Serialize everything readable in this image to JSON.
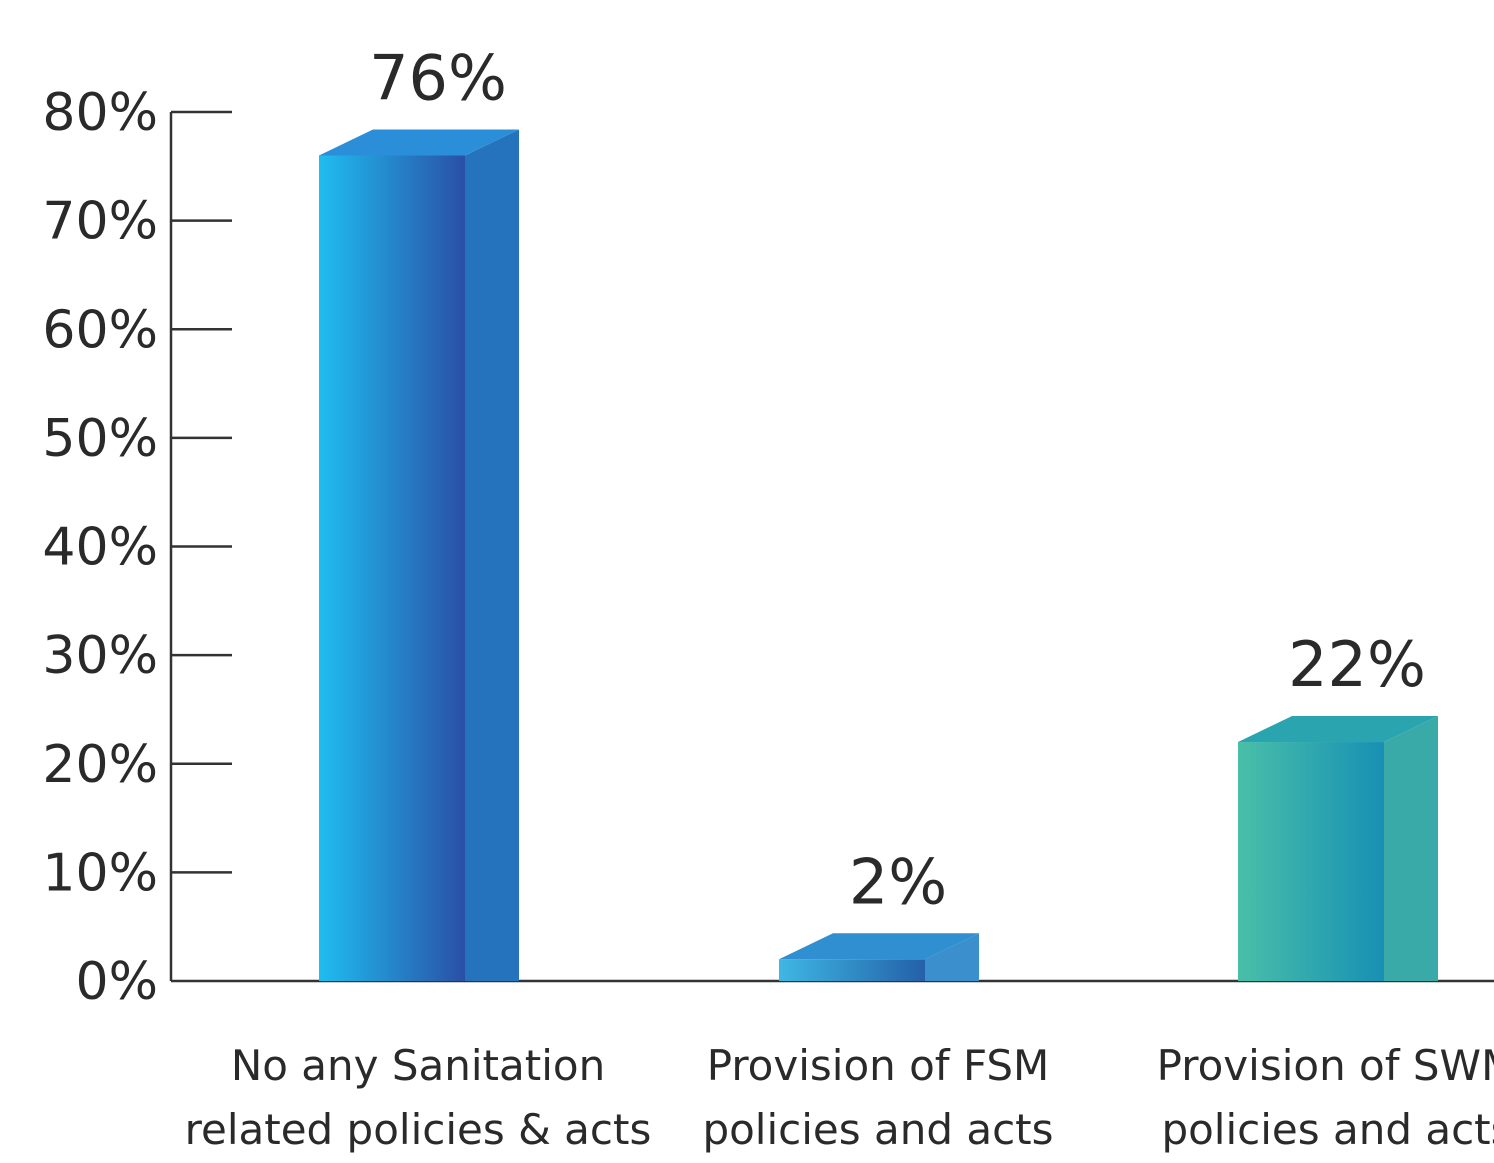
{
  "chart_data": {
    "type": "bar",
    "categories": [
      [
        "No any Sanitation",
        "related policies & acts"
      ],
      [
        "Provision of FSM",
        "policies and acts"
      ],
      [
        "Provision of SWM",
        "policies and acts"
      ]
    ],
    "values": [
      76,
      2,
      22
    ],
    "value_labels": [
      "76%",
      "2%",
      "22%"
    ],
    "yticks": [
      "0%",
      "10%",
      "20%",
      "30%",
      "40%",
      "50%",
      "60%",
      "70%",
      "80%"
    ],
    "ylim": [
      0,
      80
    ],
    "bar_colors": [
      {
        "light": "#1fbdf0",
        "dark": "#2a4fa6",
        "side": "#2573bd",
        "top": "#2a8fd8"
      },
      {
        "light": "#3eb7e3",
        "dark": "#2460a8",
        "side": "#3a8fcc",
        "top": "#2f8fd0"
      },
      {
        "light": "#49bfa8",
        "dark": "#1790b5",
        "side": "#3aaaa9",
        "top": "#2aa5b0"
      }
    ],
    "grid": false,
    "legend": "none"
  }
}
